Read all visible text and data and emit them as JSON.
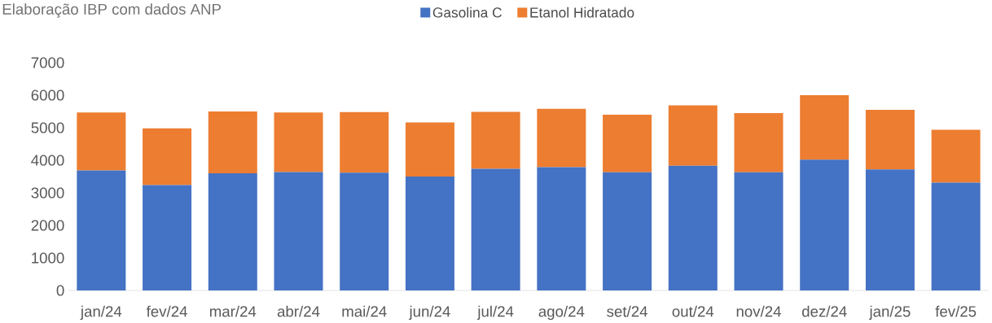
{
  "chart_data": {
    "type": "bar",
    "stacked": true,
    "legend": "top",
    "annotations": [
      "Elaboração IBP com dados ANP"
    ],
    "categories": [
      "jan/24",
      "fev/24",
      "mar/24",
      "abr/24",
      "mai/24",
      "jun/24",
      "jul/24",
      "ago/24",
      "set/24",
      "out/24",
      "nov/24",
      "dez/24",
      "jan/25",
      "fev/25"
    ],
    "series": [
      {
        "name": "Gasolina C",
        "color": "#4472c4",
        "values": [
          3690,
          3240,
          3600,
          3640,
          3620,
          3500,
          3740,
          3790,
          3630,
          3830,
          3630,
          4020,
          3720,
          3310
        ]
      },
      {
        "name": "Etanol Hidratado",
        "color": "#ed7d31",
        "values": [
          1780,
          1740,
          1900,
          1830,
          1860,
          1660,
          1750,
          1790,
          1770,
          1860,
          1820,
          1980,
          1830,
          1630
        ]
      }
    ],
    "ylim": [
      0,
      7000
    ],
    "yticks": [
      0,
      1000,
      2000,
      3000,
      4000,
      5000,
      6000,
      7000
    ]
  }
}
